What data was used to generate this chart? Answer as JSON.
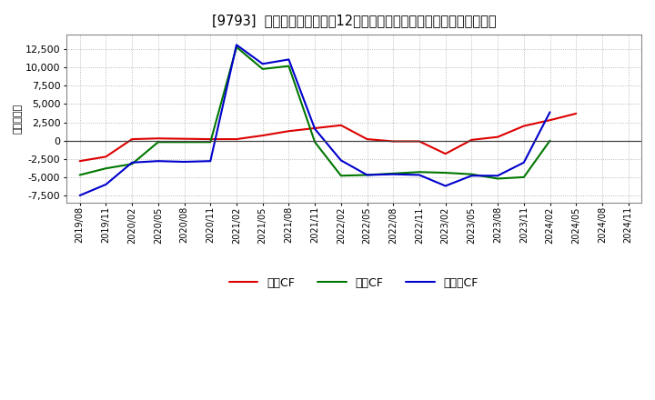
{
  "title": "[9793]  キャッシュフローの12か月移動合計の対前年同期増減額の推移",
  "ylabel": "（百万円）",
  "background_color": "#ffffff",
  "plot_bg_color": "#ffffff",
  "grid_color": "#aaaaaa",
  "x_labels": [
    "2019/08",
    "2019/11",
    "2020/02",
    "2020/05",
    "2020/08",
    "2020/11",
    "2021/02",
    "2021/05",
    "2021/08",
    "2021/11",
    "2022/02",
    "2022/05",
    "2022/08",
    "2022/11",
    "2023/02",
    "2023/05",
    "2023/08",
    "2023/11",
    "2024/02",
    "2024/05",
    "2024/08",
    "2024/11"
  ],
  "eigyo_cf": [
    -2800,
    -2200,
    200,
    300,
    250,
    200,
    200,
    700,
    1300,
    1700,
    2100,
    200,
    -100,
    -100,
    -1800,
    100,
    500,
    2000,
    2800,
    3700,
    null,
    null
  ],
  "toshi_cf": [
    -4700,
    -3800,
    -3200,
    -200,
    -200,
    -200,
    12800,
    9800,
    10200,
    -200,
    -4800,
    -4700,
    -4500,
    -4300,
    -4400,
    -4600,
    -5200,
    -5000,
    0,
    null,
    null,
    null
  ],
  "free_cf": [
    -7500,
    -6000,
    -3000,
    -2800,
    -2900,
    -2800,
    13100,
    10500,
    11100,
    1600,
    -2700,
    -4700,
    -4600,
    -4700,
    -6200,
    -4800,
    -4800,
    -3000,
    3900,
    null,
    null,
    null
  ],
  "color_eigyo": "#dd0000",
  "color_toshi": "#007700",
  "color_free": "#0000cc",
  "legend_eigyo": "営業CF",
  "legend_toshi": "投資CF",
  "legend_free": "フリーCF",
  "ylim": [
    -8500,
    14500
  ],
  "yticks": [
    -7500,
    -5000,
    -2500,
    0,
    2500,
    5000,
    7500,
    10000,
    12500
  ]
}
